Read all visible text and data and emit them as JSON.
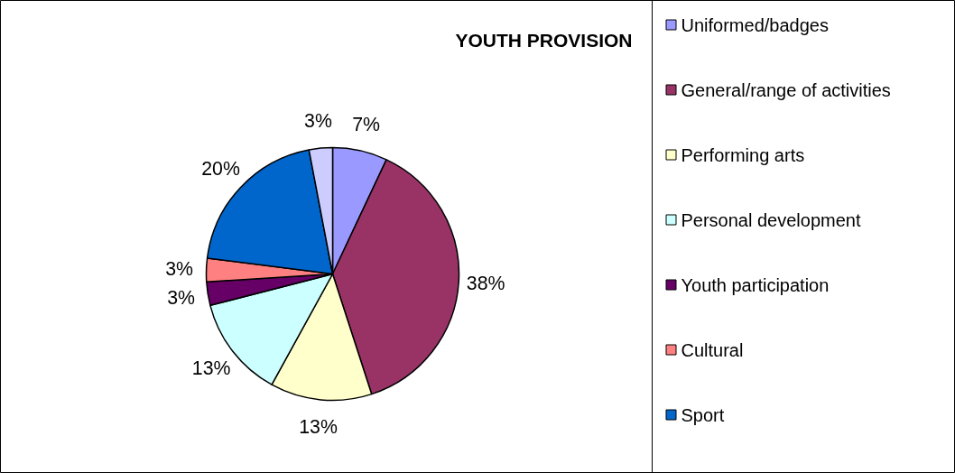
{
  "chart_data": {
    "type": "pie",
    "title": "YOUTH PROVISION",
    "categories": [
      "Uniformed/badges",
      "General/range of activities",
      "Performing arts",
      "Personal development",
      "Youth participation",
      "Cultural",
      "Sport",
      null
    ],
    "values": [
      7,
      38,
      13,
      13,
      3,
      3,
      20,
      3
    ],
    "colors": [
      "#9999ff",
      "#993366",
      "#ffffcc",
      "#ccffff",
      "#660066",
      "#ff8080",
      "#0066cc",
      "#ccccff"
    ],
    "value_labels": [
      "7%",
      "38%",
      "13%",
      "13%",
      "3%",
      "3%",
      "20%",
      "3%"
    ],
    "legend": "right"
  }
}
